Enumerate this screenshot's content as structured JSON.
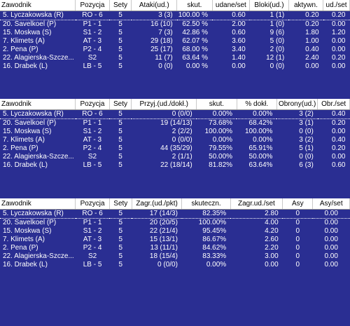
{
  "table1": {
    "headers": [
      "Zawodnik",
      "Pozycja",
      "Sety",
      "Ataki(ud.)",
      "skut.",
      "udane/set",
      "Bloki(ud.)",
      "aktywn.",
      "ud./set"
    ],
    "rows": [
      [
        "5. Lyczakowska (R)",
        "RO - 6",
        "5",
        "3 (3)",
        "100.00 %",
        "0.60",
        "1 (1)",
        "0.20",
        "0.20"
      ],
      [
        "20. Savelkoel (P)",
        "P1 - 1",
        "5",
        "16 (10)",
        "62.50 %",
        "2.00",
        "1 (0)",
        "0.20",
        "0.00"
      ],
      [
        "15. Moskwa (S)",
        "S1 - 2",
        "5",
        "7 (3)",
        "42.86 %",
        "0.60",
        "9 (6)",
        "1.80",
        "1.20"
      ],
      [
        "7. Klimets (A)",
        "AT - 3",
        "5",
        "29 (18)",
        "62.07 %",
        "3.60",
        "5 (0)",
        "1.00",
        "0.00"
      ],
      [
        "2. Pena (P)",
        "P2 - 4",
        "5",
        "25 (17)",
        "68.00 %",
        "3.40",
        "2 (0)",
        "0.40",
        "0.00"
      ],
      [
        "22. Alagierska-Szcze...",
        "S2",
        "5",
        "11 (7)",
        "63.64 %",
        "1.40",
        "12 (1)",
        "2.40",
        "0.20"
      ],
      [
        "16. Drabek (L)",
        "LB - 5",
        "5",
        "0 (0)",
        "0.00 %",
        "0.00",
        "0 (0)",
        "0.00",
        "0.00"
      ]
    ]
  },
  "table2": {
    "headers": [
      "Zawodnik",
      "Pozycja",
      "Sety",
      "Przyj.(ud./dokł.)",
      "skut.",
      "% dokł.",
      "Obrony(ud.)",
      "Obr./set"
    ],
    "rows": [
      [
        "5. Lyczakowska (R)",
        "RO - 6",
        "5",
        "0 (0/0)",
        "0.00%",
        "0.00%",
        "3 (2)",
        "0.40"
      ],
      [
        "20. Savelkoel (P)",
        "P1 - 1",
        "5",
        "19 (14/13)",
        "73.68%",
        "68.42%",
        "3 (1)",
        "0.20"
      ],
      [
        "15. Moskwa (S)",
        "S1 - 2",
        "5",
        "2 (2/2)",
        "100.00%",
        "100.00%",
        "0 (0)",
        "0.00"
      ],
      [
        "7. Klimets (A)",
        "AT - 3",
        "5",
        "0 (0/0)",
        "0.00%",
        "0.00%",
        "3 (2)",
        "0.40"
      ],
      [
        "2. Pena (P)",
        "P2 - 4",
        "5",
        "44 (35/29)",
        "79.55%",
        "65.91%",
        "5 (1)",
        "0.20"
      ],
      [
        "22. Alagierska-Szcze...",
        "S2",
        "5",
        "2 (1/1)",
        "50.00%",
        "50.00%",
        "0 (0)",
        "0.00"
      ],
      [
        "16. Drabek (L)",
        "LB - 5",
        "5",
        "22 (18/14)",
        "81.82%",
        "63.64%",
        "6 (3)",
        "0.60"
      ]
    ]
  },
  "table3": {
    "headers": [
      "Zawodnik",
      "Pozycja",
      "Sety",
      "Zagr.(ud./pkt)",
      "skuteczn.",
      "Zagr.ud./set",
      "Asy",
      "Asy/set"
    ],
    "rows": [
      [
        "5. Lyczakowska (R)",
        "RO - 6",
        "5",
        "17 (14/3)",
        "82.35%",
        "2.80",
        "0",
        "0.00"
      ],
      [
        "20. Savelkoel (P)",
        "P1 - 1",
        "5",
        "20 (20/5)",
        "100.00%",
        "4.00",
        "0",
        "0.00"
      ],
      [
        "15. Moskwa (S)",
        "S1 - 2",
        "5",
        "22 (21/4)",
        "95.45%",
        "4.20",
        "0",
        "0.00"
      ],
      [
        "7. Klimets (A)",
        "AT - 3",
        "5",
        "15 (13/1)",
        "86.67%",
        "2.60",
        "0",
        "0.00"
      ],
      [
        "2. Pena (P)",
        "P2 - 4",
        "5",
        "13 (11/1)",
        "84.62%",
        "2.20",
        "0",
        "0.00"
      ],
      [
        "22. Alagierska-Szcze...",
        "S2",
        "5",
        "18 (15/4)",
        "83.33%",
        "3.00",
        "0",
        "0.00"
      ],
      [
        "16. Drabek (L)",
        "LB - 5",
        "5",
        "0 (0/0)",
        "0.00%",
        "0.00",
        "0",
        "0.00"
      ]
    ]
  }
}
